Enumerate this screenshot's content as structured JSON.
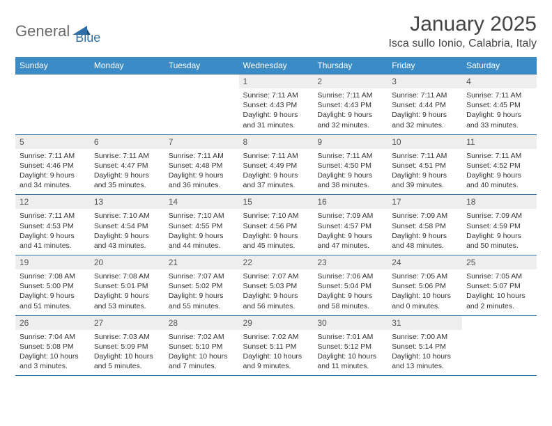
{
  "logo": {
    "text1": "General",
    "text2": "Blue"
  },
  "title": "January 2025",
  "location": "Isca sullo Ionio, Calabria, Italy",
  "colors": {
    "header_bg": "#3b8bc7",
    "header_fg": "#ffffff",
    "border": "#2f6fa8",
    "daynum_bg": "#eeeeee",
    "text": "#333333",
    "logo_gray": "#6a6a6a",
    "logo_blue": "#2f6fa8"
  },
  "weekdays": [
    "Sunday",
    "Monday",
    "Tuesday",
    "Wednesday",
    "Thursday",
    "Friday",
    "Saturday"
  ],
  "weeks": [
    [
      {
        "empty": true
      },
      {
        "empty": true
      },
      {
        "empty": true
      },
      {
        "num": "1",
        "sunrise": "Sunrise: 7:11 AM",
        "sunset": "Sunset: 4:43 PM",
        "daylight": "Daylight: 9 hours and 31 minutes."
      },
      {
        "num": "2",
        "sunrise": "Sunrise: 7:11 AM",
        "sunset": "Sunset: 4:43 PM",
        "daylight": "Daylight: 9 hours and 32 minutes."
      },
      {
        "num": "3",
        "sunrise": "Sunrise: 7:11 AM",
        "sunset": "Sunset: 4:44 PM",
        "daylight": "Daylight: 9 hours and 32 minutes."
      },
      {
        "num": "4",
        "sunrise": "Sunrise: 7:11 AM",
        "sunset": "Sunset: 4:45 PM",
        "daylight": "Daylight: 9 hours and 33 minutes."
      }
    ],
    [
      {
        "num": "5",
        "sunrise": "Sunrise: 7:11 AM",
        "sunset": "Sunset: 4:46 PM",
        "daylight": "Daylight: 9 hours and 34 minutes."
      },
      {
        "num": "6",
        "sunrise": "Sunrise: 7:11 AM",
        "sunset": "Sunset: 4:47 PM",
        "daylight": "Daylight: 9 hours and 35 minutes."
      },
      {
        "num": "7",
        "sunrise": "Sunrise: 7:11 AM",
        "sunset": "Sunset: 4:48 PM",
        "daylight": "Daylight: 9 hours and 36 minutes."
      },
      {
        "num": "8",
        "sunrise": "Sunrise: 7:11 AM",
        "sunset": "Sunset: 4:49 PM",
        "daylight": "Daylight: 9 hours and 37 minutes."
      },
      {
        "num": "9",
        "sunrise": "Sunrise: 7:11 AM",
        "sunset": "Sunset: 4:50 PM",
        "daylight": "Daylight: 9 hours and 38 minutes."
      },
      {
        "num": "10",
        "sunrise": "Sunrise: 7:11 AM",
        "sunset": "Sunset: 4:51 PM",
        "daylight": "Daylight: 9 hours and 39 minutes."
      },
      {
        "num": "11",
        "sunrise": "Sunrise: 7:11 AM",
        "sunset": "Sunset: 4:52 PM",
        "daylight": "Daylight: 9 hours and 40 minutes."
      }
    ],
    [
      {
        "num": "12",
        "sunrise": "Sunrise: 7:11 AM",
        "sunset": "Sunset: 4:53 PM",
        "daylight": "Daylight: 9 hours and 41 minutes."
      },
      {
        "num": "13",
        "sunrise": "Sunrise: 7:10 AM",
        "sunset": "Sunset: 4:54 PM",
        "daylight": "Daylight: 9 hours and 43 minutes."
      },
      {
        "num": "14",
        "sunrise": "Sunrise: 7:10 AM",
        "sunset": "Sunset: 4:55 PM",
        "daylight": "Daylight: 9 hours and 44 minutes."
      },
      {
        "num": "15",
        "sunrise": "Sunrise: 7:10 AM",
        "sunset": "Sunset: 4:56 PM",
        "daylight": "Daylight: 9 hours and 45 minutes."
      },
      {
        "num": "16",
        "sunrise": "Sunrise: 7:09 AM",
        "sunset": "Sunset: 4:57 PM",
        "daylight": "Daylight: 9 hours and 47 minutes."
      },
      {
        "num": "17",
        "sunrise": "Sunrise: 7:09 AM",
        "sunset": "Sunset: 4:58 PM",
        "daylight": "Daylight: 9 hours and 48 minutes."
      },
      {
        "num": "18",
        "sunrise": "Sunrise: 7:09 AM",
        "sunset": "Sunset: 4:59 PM",
        "daylight": "Daylight: 9 hours and 50 minutes."
      }
    ],
    [
      {
        "num": "19",
        "sunrise": "Sunrise: 7:08 AM",
        "sunset": "Sunset: 5:00 PM",
        "daylight": "Daylight: 9 hours and 51 minutes."
      },
      {
        "num": "20",
        "sunrise": "Sunrise: 7:08 AM",
        "sunset": "Sunset: 5:01 PM",
        "daylight": "Daylight: 9 hours and 53 minutes."
      },
      {
        "num": "21",
        "sunrise": "Sunrise: 7:07 AM",
        "sunset": "Sunset: 5:02 PM",
        "daylight": "Daylight: 9 hours and 55 minutes."
      },
      {
        "num": "22",
        "sunrise": "Sunrise: 7:07 AM",
        "sunset": "Sunset: 5:03 PM",
        "daylight": "Daylight: 9 hours and 56 minutes."
      },
      {
        "num": "23",
        "sunrise": "Sunrise: 7:06 AM",
        "sunset": "Sunset: 5:04 PM",
        "daylight": "Daylight: 9 hours and 58 minutes."
      },
      {
        "num": "24",
        "sunrise": "Sunrise: 7:05 AM",
        "sunset": "Sunset: 5:06 PM",
        "daylight": "Daylight: 10 hours and 0 minutes."
      },
      {
        "num": "25",
        "sunrise": "Sunrise: 7:05 AM",
        "sunset": "Sunset: 5:07 PM",
        "daylight": "Daylight: 10 hours and 2 minutes."
      }
    ],
    [
      {
        "num": "26",
        "sunrise": "Sunrise: 7:04 AM",
        "sunset": "Sunset: 5:08 PM",
        "daylight": "Daylight: 10 hours and 3 minutes."
      },
      {
        "num": "27",
        "sunrise": "Sunrise: 7:03 AM",
        "sunset": "Sunset: 5:09 PM",
        "daylight": "Daylight: 10 hours and 5 minutes."
      },
      {
        "num": "28",
        "sunrise": "Sunrise: 7:02 AM",
        "sunset": "Sunset: 5:10 PM",
        "daylight": "Daylight: 10 hours and 7 minutes."
      },
      {
        "num": "29",
        "sunrise": "Sunrise: 7:02 AM",
        "sunset": "Sunset: 5:11 PM",
        "daylight": "Daylight: 10 hours and 9 minutes."
      },
      {
        "num": "30",
        "sunrise": "Sunrise: 7:01 AM",
        "sunset": "Sunset: 5:12 PM",
        "daylight": "Daylight: 10 hours and 11 minutes."
      },
      {
        "num": "31",
        "sunrise": "Sunrise: 7:00 AM",
        "sunset": "Sunset: 5:14 PM",
        "daylight": "Daylight: 10 hours and 13 minutes."
      },
      {
        "empty": true
      }
    ]
  ]
}
